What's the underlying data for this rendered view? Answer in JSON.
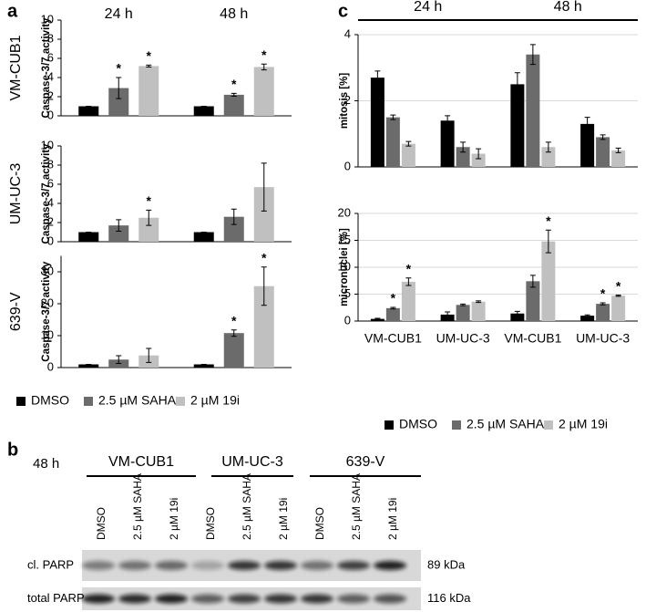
{
  "panel_labels": [
    "a",
    "b",
    "c"
  ],
  "legend": [
    {
      "name": "DMSO",
      "color": "#000000"
    },
    {
      "name": "2.5 µM SAHA",
      "color": "#6b6b6b"
    },
    {
      "name": "2 µM 19i",
      "color": "#c0c0c0"
    }
  ],
  "chart_data": [
    {
      "type": "bar",
      "row_label": "VM-CUB1",
      "ylabel": "Caspase-3/7 activity",
      "categories": [
        "24 h",
        "48 h"
      ],
      "ylim": [
        0,
        10
      ],
      "yticks": [
        0,
        2,
        4,
        6,
        8,
        10
      ],
      "grid": false,
      "series": [
        {
          "values": [
            1,
            1
          ],
          "errors": [
            0,
            0
          ],
          "significance": [
            null,
            null
          ]
        },
        {
          "values": [
            2.9,
            2.2
          ],
          "errors": [
            1.1,
            0.15
          ],
          "significance": [
            "*",
            "*"
          ]
        },
        {
          "values": [
            5.2,
            5.1
          ],
          "errors": [
            0.1,
            0.3
          ],
          "significance": [
            "*",
            "*"
          ]
        }
      ]
    },
    {
      "type": "bar",
      "row_label": "UM-UC-3",
      "ylabel": "Caspase-3/7 activity",
      "ylim": [
        0,
        10
      ],
      "yticks": [
        0,
        2,
        4,
        6,
        8,
        10
      ],
      "grid": false,
      "series": [
        {
          "values": [
            1,
            1
          ],
          "errors": [
            0,
            0
          ],
          "significance": [
            null,
            null
          ]
        },
        {
          "values": [
            1.7,
            2.6
          ],
          "errors": [
            0.6,
            0.8
          ],
          "significance": [
            null,
            null
          ]
        },
        {
          "values": [
            2.5,
            5.7
          ],
          "errors": [
            0.8,
            2.5
          ],
          "significance": [
            "*",
            null
          ]
        }
      ]
    },
    {
      "type": "bar",
      "row_label": "639-V",
      "ylabel": "Caspase-3/7 activity",
      "ylim": [
        0,
        35
      ],
      "yticks": [
        0,
        10,
        20,
        30
      ],
      "grid": false,
      "series": [
        {
          "values": [
            1,
            1
          ],
          "errors": [
            0,
            0
          ],
          "significance": [
            null,
            null
          ]
        },
        {
          "values": [
            2.5,
            10.8
          ],
          "errors": [
            1.2,
            1
          ],
          "significance": [
            null,
            "*"
          ]
        },
        {
          "values": [
            3.8,
            25.5
          ],
          "errors": [
            2.2,
            6
          ],
          "significance": [
            null,
            "*"
          ]
        }
      ]
    },
    {
      "type": "bar",
      "ylabel": "mitosis [%]",
      "groups": [
        "24 h",
        "48 h"
      ],
      "ylim": [
        0,
        4
      ],
      "yticks": [
        0,
        2,
        4
      ],
      "grid": true,
      "series": [
        {
          "values": [
            2.7,
            1.4,
            2.5,
            1.3
          ],
          "errors": [
            0.2,
            0.15,
            0.35,
            0.2
          ],
          "significance": [
            null,
            null,
            null,
            null
          ]
        },
        {
          "values": [
            1.5,
            0.6,
            3.4,
            0.9
          ],
          "errors": [
            0.07,
            0.15,
            0.3,
            0.07
          ],
          "significance": [
            null,
            null,
            null,
            null
          ]
        },
        {
          "values": [
            0.7,
            0.4,
            0.6,
            0.5
          ],
          "errors": [
            0.07,
            0.15,
            0.15,
            0.07
          ],
          "significance": [
            null,
            null,
            null,
            null
          ]
        }
      ]
    },
    {
      "type": "bar",
      "ylabel": "micronuclei [%]",
      "categories": [
        "VM-CUB1",
        "UM-UC-3",
        "VM-CUB1",
        "UM-UC-3"
      ],
      "ylim": [
        0,
        20
      ],
      "yticks": [
        0,
        5,
        10,
        15,
        20
      ],
      "grid": true,
      "series": [
        {
          "values": [
            0.4,
            1.2,
            1.4,
            1.0
          ],
          "errors": [
            0.1,
            0.5,
            0.4,
            0.15
          ],
          "significance": [
            null,
            null,
            null,
            null
          ]
        },
        {
          "values": [
            2.4,
            3.0,
            7.4,
            3.2
          ],
          "errors": [
            0.15,
            0.15,
            1.1,
            0.2
          ],
          "significance": [
            "*",
            null,
            null,
            "*"
          ]
        },
        {
          "values": [
            7.3,
            3.6,
            14.8,
            4.7
          ],
          "errors": [
            0.7,
            0.15,
            2.1,
            0.1
          ],
          "significance": [
            "*",
            null,
            "*",
            "*"
          ]
        }
      ]
    }
  ],
  "blot": {
    "time": "48 h",
    "cell_lines": [
      "VM-CUB1",
      "UM-UC-3",
      "639-V"
    ],
    "lanes": [
      "DMSO",
      "2.5 µM SAHA",
      "2 µM 19i"
    ],
    "rows": [
      {
        "label": "cl. PARP",
        "size": "89 kDa"
      },
      {
        "label": "total PARP",
        "size": "116 kDa"
      }
    ]
  }
}
